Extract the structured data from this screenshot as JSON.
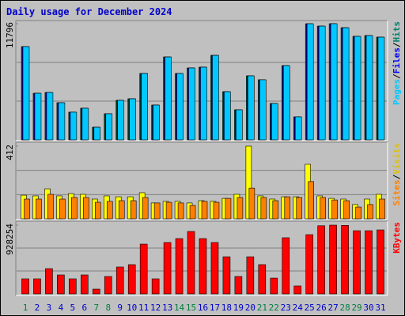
{
  "title": "Daily usage for December 2024",
  "legend_separator": "/",
  "chart_data": [
    {
      "type": "bar",
      "ylim": [
        0,
        11796
      ],
      "yticks": [
        11796
      ],
      "series": [
        {
          "name": "Pages",
          "color": "#00c8ff",
          "values": [
            9470,
            4730,
            4810,
            3770,
            2810,
            3210,
            1280,
            2650,
            4010,
            4170,
            6740,
            3530,
            8420,
            6740,
            7300,
            7380,
            8580,
            4890,
            3050,
            6500,
            6100,
            3690,
            7540,
            2330,
            11790,
            11550,
            11796,
            11390,
            10510,
            10590,
            10430
          ]
        },
        {
          "name": "Files",
          "color": "#0000ff",
          "values": [
            9470,
            4730,
            4810,
            3770,
            2810,
            3210,
            1280,
            2650,
            4010,
            4170,
            6740,
            3530,
            8420,
            6740,
            7300,
            7380,
            8580,
            4890,
            3050,
            6500,
            6100,
            3690,
            7540,
            2330,
            11790,
            11550,
            11796,
            11390,
            10510,
            10590,
            10430
          ]
        },
        {
          "name": "Hits",
          "color": "#00806c",
          "values": [
            9470,
            4730,
            4810,
            3770,
            2810,
            3210,
            1280,
            2650,
            4010,
            4170,
            6740,
            3530,
            8420,
            6740,
            7300,
            7380,
            8580,
            4890,
            3050,
            6500,
            6100,
            3690,
            7540,
            2330,
            11790,
            11550,
            11796,
            11390,
            10510,
            10590,
            10430
          ]
        }
      ]
    },
    {
      "type": "bar",
      "ylim": [
        0,
        412
      ],
      "yticks": [
        412
      ],
      "series": [
        {
          "name": "Sites",
          "color": "#ff8000",
          "values": [
            112,
            112,
            139,
            112,
            121,
            121,
            94,
            99,
            103,
            103,
            121,
            90,
            94,
            90,
            76,
            99,
            94,
            116,
            121,
            174,
            121,
            103,
            125,
            121,
            211,
            121,
            107,
            103,
            67,
            81,
            112
          ]
        },
        {
          "name": "Visits",
          "color": "#ffff00",
          "text_color": "#e0c000",
          "values": [
            134,
            130,
            170,
            130,
            143,
            139,
            112,
            130,
            125,
            125,
            148,
            90,
            99,
            99,
            90,
            103,
            99,
            116,
            139,
            412,
            130,
            112,
            125,
            125,
            309,
            130,
            116,
            112,
            81,
            112,
            139
          ]
        }
      ]
    },
    {
      "type": "bar",
      "ylim": [
        0,
        928254
      ],
      "yticks": [
        928254
      ],
      "categories": [
        "1",
        "2",
        "3",
        "4",
        "5",
        "6",
        "7",
        "8",
        "9",
        "10",
        "11",
        "12",
        "13",
        "14",
        "15",
        "16",
        "17",
        "18",
        "19",
        "20",
        "21",
        "22",
        "23",
        "24",
        "25",
        "26",
        "27",
        "28",
        "29",
        "30",
        "31"
      ],
      "category_colors": [
        "#008040",
        "#0000cc",
        "#0000cc",
        "#0000cc",
        "#0000cc",
        "#0000cc",
        "#008040",
        "#008040",
        "#0000cc",
        "#0000cc",
        "#0000cc",
        "#0000cc",
        "#0000cc",
        "#008040",
        "#008040",
        "#0000cc",
        "#0000cc",
        "#0000cc",
        "#0000cc",
        "#0000cc",
        "#008040",
        "#008040",
        "#0000cc",
        "#0000cc",
        "#0000cc",
        "#0000cc",
        "#0000cc",
        "#008040",
        "#008040",
        "#0000cc",
        "#0000cc"
      ],
      "series": [
        {
          "name": "KBytes",
          "color": "#ff0000",
          "values": [
            203000,
            203000,
            341000,
            256000,
            203000,
            256000,
            64000,
            235000,
            363000,
            395000,
            672000,
            203000,
            694000,
            747000,
            843000,
            747000,
            694000,
            501000,
            235000,
            501000,
            395000,
            213000,
            758000,
            107000,
            800000,
            920000,
            928254,
            925000,
            853000,
            853000,
            864000
          ]
        }
      ]
    }
  ]
}
